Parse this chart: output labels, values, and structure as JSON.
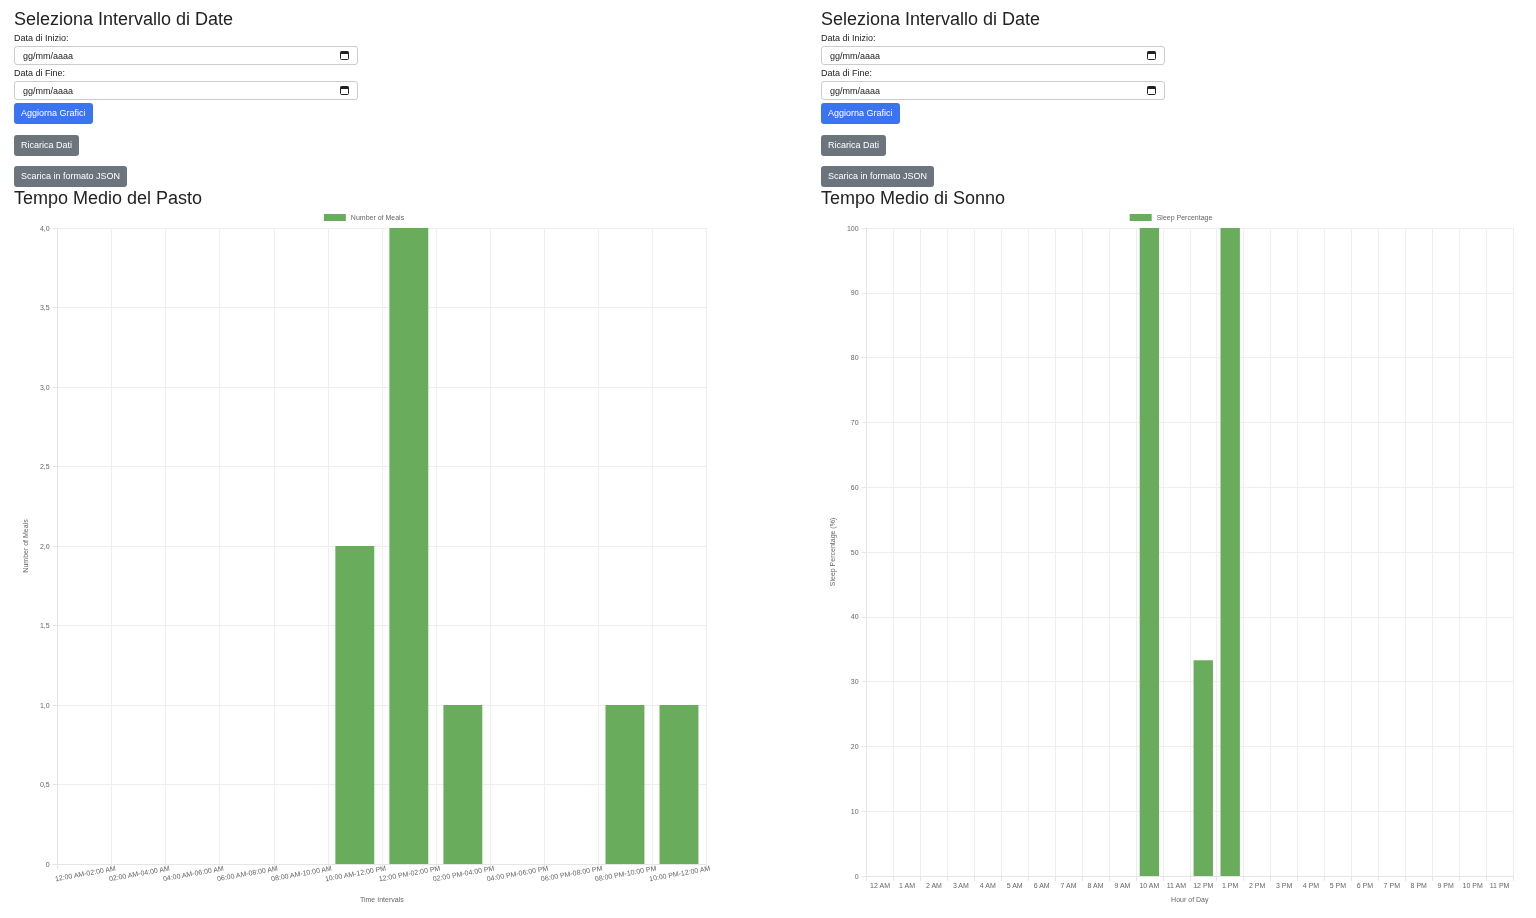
{
  "chart_data": [
    {
      "type": "bar",
      "title": "Tempo Medio del Pasto",
      "xlabel": "Time Intervals",
      "ylabel": "Number of Meals",
      "annotations": [
        "Seleziona Intervallo di Date",
        "Data di Inizio:",
        "gg/mm/aaaa",
        "Data di Fine:",
        "gg/mm/aaaa",
        "Aggiorna Grafici",
        "Ricarica Dati",
        "Scarica in formato JSON"
      ],
      "categories": [
        "12:00 AM-02:00 AM",
        "02:00 AM-04:00 AM",
        "04:00 AM-06:00 AM",
        "06:00 AM-08:00 AM",
        "08:00 AM-10:00 AM",
        "10:00 AM-12:00 PM",
        "12:00 PM-02:00 PM",
        "02:00 PM-04:00 PM",
        "04:00 PM-06:00 PM",
        "06:00 PM-08:00 PM",
        "08:00 PM-10:00 PM",
        "10:00 PM-12:00 AM"
      ],
      "series": [
        {
          "name": "Number of Meals",
          "color": "#68ac5c",
          "values": [
            0,
            0,
            0,
            0,
            0,
            2,
            4,
            1,
            0,
            0,
            1,
            1
          ]
        }
      ],
      "ylim": [
        0,
        4
      ],
      "yticks": [
        0,
        {
          "value": 0.5,
          "label": "0,5"
        },
        {
          "value": 1,
          "label": "1,0"
        },
        {
          "value": 1.5,
          "label": "1,5"
        },
        {
          "value": 2,
          "label": "2,0"
        },
        {
          "value": 2.5,
          "label": "2,5"
        },
        {
          "value": 3,
          "label": "3,0"
        },
        {
          "value": 3.5,
          "label": "3,5"
        },
        {
          "value": 4,
          "label": "4,0"
        }
      ],
      "grid": true,
      "legend": "top"
    },
    {
      "type": "bar",
      "title": "Tempo Medio di Sonno",
      "xlabel": "Hour of Day",
      "ylabel": "Sleep Percentage (%)",
      "annotations": [
        "Seleziona Intervallo di Date",
        "Data di Inizio:",
        "gg/mm/aaaa",
        "Data di Fine:",
        "gg/mm/aaaa",
        "Aggiorna Grafici",
        "Ricarica Dati",
        "Scarica in formato JSON"
      ],
      "categories": [
        "12 AM",
        "1 AM",
        "2 AM",
        "3 AM",
        "4 AM",
        "5 AM",
        "6 AM",
        "7 AM",
        "8 AM",
        "9 AM",
        "10 AM",
        "11 AM",
        "12 PM",
        "1 PM",
        "2 PM",
        "3 PM",
        "4 PM",
        "5 PM",
        "6 PM",
        "7 PM",
        "8 PM",
        "9 PM",
        "10 PM",
        "11 PM"
      ],
      "series": [
        {
          "name": "Sleep Percentage",
          "color": "#68ac5c",
          "values": [
            0,
            0,
            0,
            0,
            0,
            0,
            0,
            0,
            0,
            0,
            100,
            0,
            33.3,
            100,
            0,
            0,
            0,
            0,
            0,
            0,
            0,
            0,
            0,
            0
          ]
        }
      ],
      "ylim": [
        0,
        100
      ],
      "yticks": [
        0,
        10,
        20,
        30,
        40,
        50,
        60,
        70,
        80,
        90,
        100
      ],
      "grid": true,
      "legend": "top"
    }
  ]
}
